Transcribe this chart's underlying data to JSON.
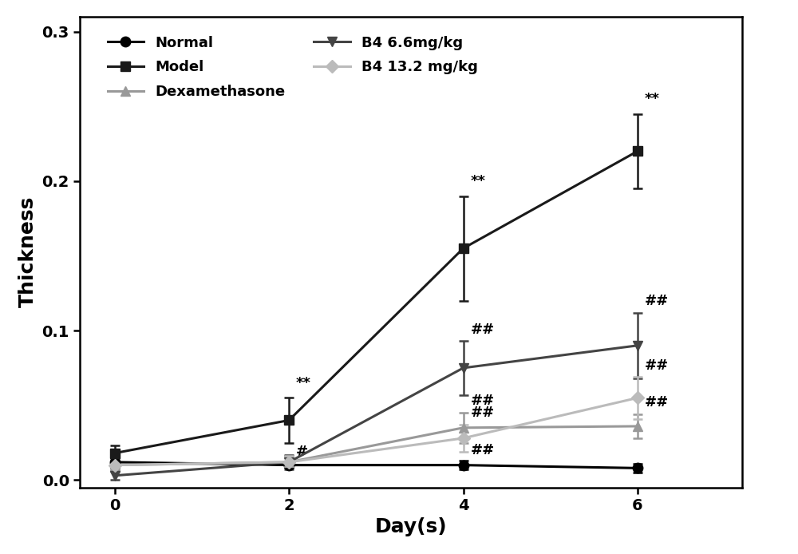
{
  "x": [
    0,
    2,
    4,
    6
  ],
  "series": {
    "Normal": {
      "y": [
        0.012,
        0.01,
        0.01,
        0.008
      ],
      "yerr": [
        0.004,
        0.002,
        0.003,
        0.003
      ],
      "color": "#000000",
      "marker": "o",
      "markersize": 9,
      "linewidth": 2.2,
      "label": "Normal"
    },
    "Model": {
      "y": [
        0.018,
        0.04,
        0.155,
        0.22
      ],
      "yerr": [
        0.005,
        0.015,
        0.035,
        0.025
      ],
      "color": "#1a1a1a",
      "marker": "s",
      "markersize": 9,
      "linewidth": 2.2,
      "label": "Model"
    },
    "Dexamethasone": {
      "y": [
        0.01,
        0.012,
        0.035,
        0.036
      ],
      "yerr": [
        0.004,
        0.004,
        0.01,
        0.008
      ],
      "color": "#999999",
      "marker": "^",
      "markersize": 9,
      "linewidth": 2.2,
      "label": "Dexamethasone"
    },
    "B4_6.6": {
      "y": [
        0.003,
        0.012,
        0.075,
        0.09
      ],
      "yerr": [
        0.003,
        0.005,
        0.018,
        0.022
      ],
      "color": "#444444",
      "marker": "v",
      "markersize": 9,
      "linewidth": 2.2,
      "label": "B4 6.6mg/kg"
    },
    "B4_13.2": {
      "y": [
        0.01,
        0.012,
        0.028,
        0.055
      ],
      "yerr": [
        0.004,
        0.004,
        0.009,
        0.014
      ],
      "color": "#bbbbbb",
      "marker": "D",
      "markersize": 8,
      "linewidth": 2.2,
      "label": "B4 13.2 mg/kg"
    }
  },
  "xlabel": "Day(s)",
  "ylabel": "Thickness",
  "xlim": [
    -0.4,
    7.2
  ],
  "ylim": [
    -0.005,
    0.31
  ],
  "xticks": [
    0,
    2,
    4,
    6
  ],
  "yticks": [
    0.0,
    0.1,
    0.2,
    0.3
  ],
  "figsize": [
    10.0,
    6.94
  ],
  "dpi": 100,
  "background_color": "#ffffff"
}
